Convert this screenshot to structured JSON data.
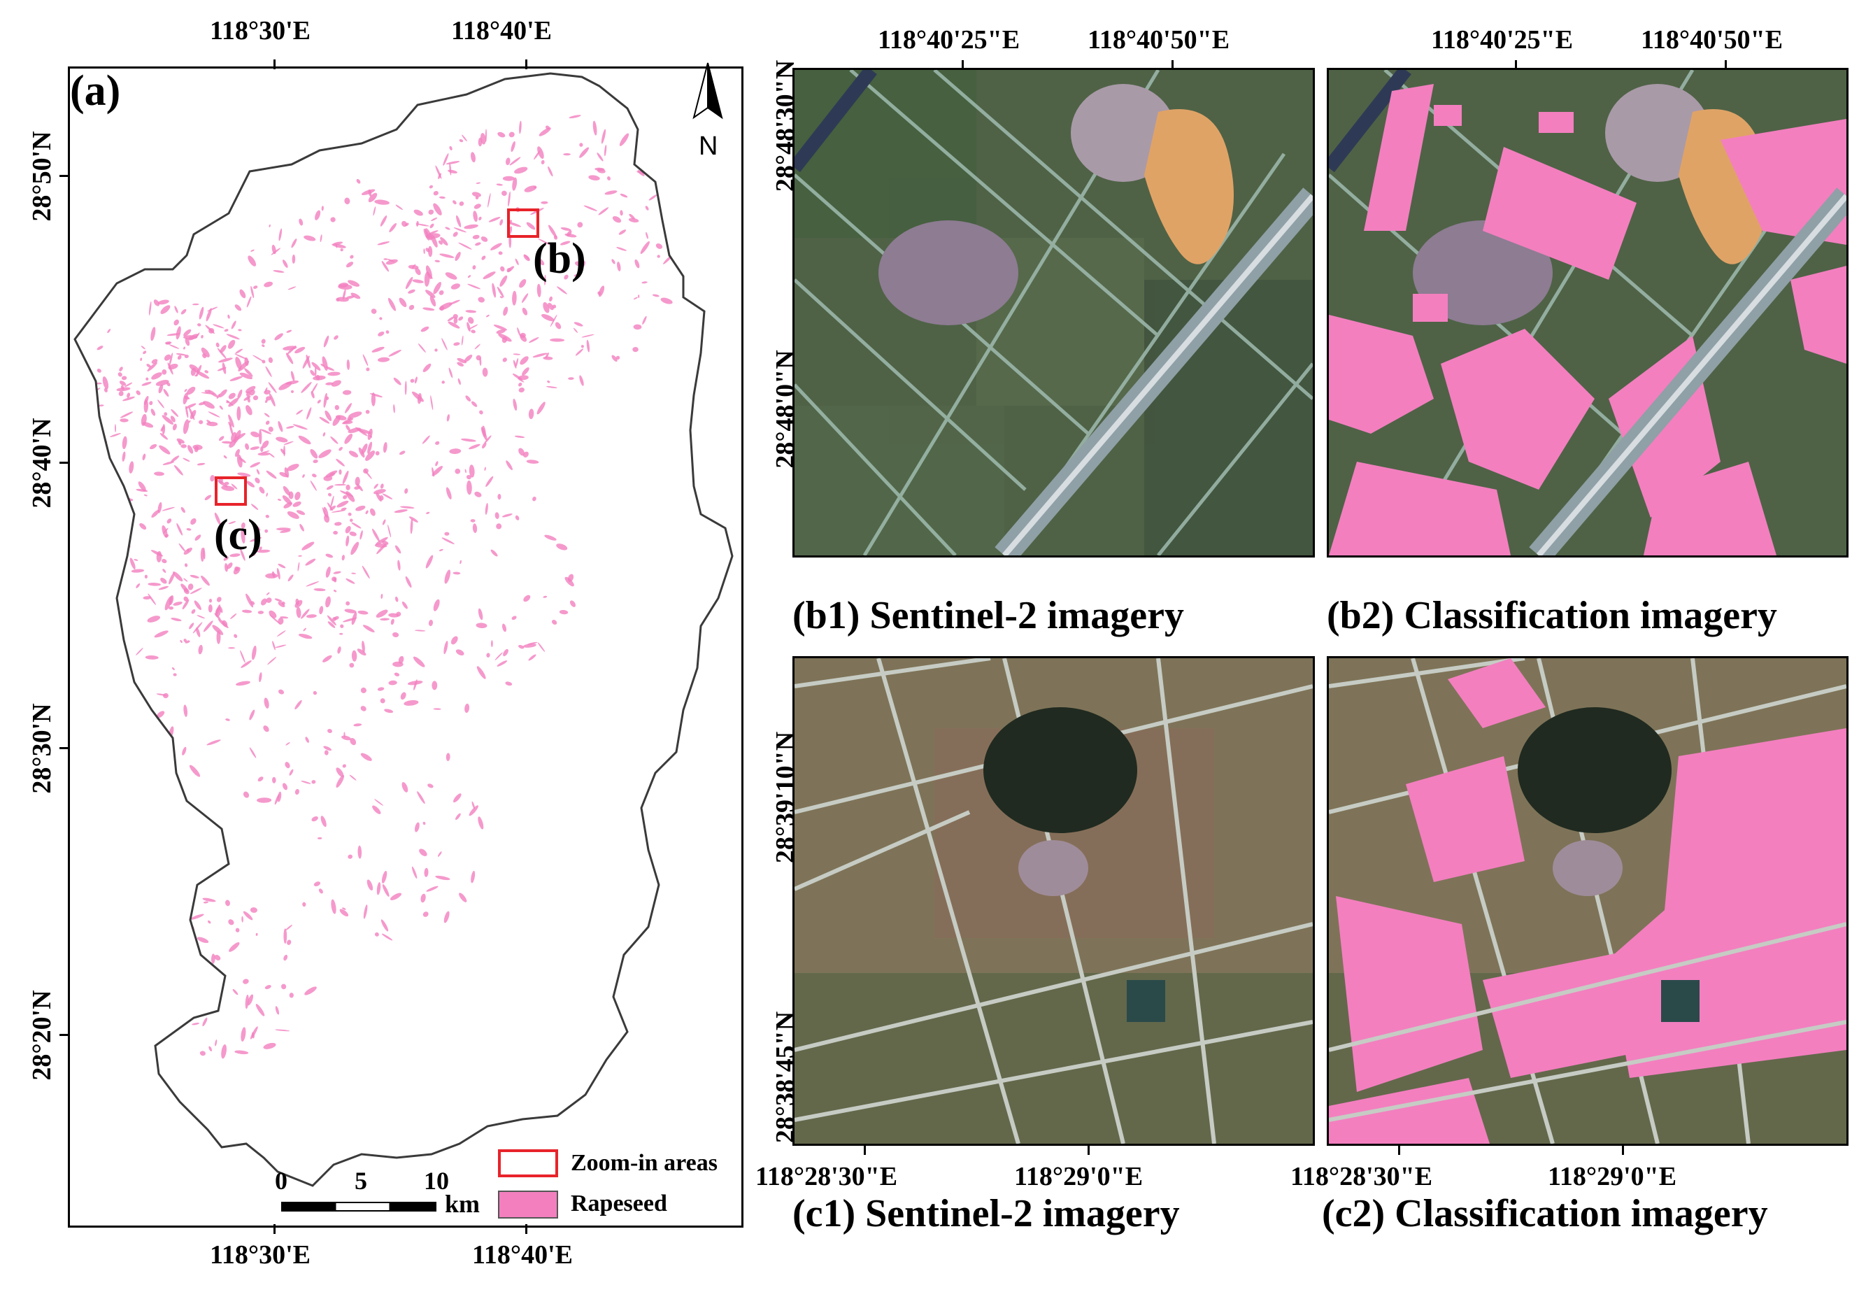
{
  "panel_a": {
    "label": "(a)",
    "top_ticks": [
      "118°30'E",
      "118°40'E"
    ],
    "bottom_ticks": [
      "118°30'E",
      "118°40'E"
    ],
    "left_ticks": [
      "28°50'N",
      "28°40'N",
      "28°30'N",
      "28°20'N"
    ],
    "north_label": "N",
    "zoom_labels": [
      "(b)",
      "(c)"
    ],
    "scale_bar": {
      "ticks": [
        "0",
        "5",
        "10"
      ],
      "unit": "km"
    },
    "legend": [
      {
        "label": "Zoom-in areas",
        "color": "#e8232a",
        "style": "outline"
      },
      {
        "label": "Rapeseed",
        "color": "#f37fbf",
        "style": "fill"
      }
    ]
  },
  "panel_b": {
    "top_ticks_b1": [
      "118°40'25\"E",
      "118°40'50\"E"
    ],
    "top_ticks_b2": [
      "118°40'25\"E",
      "118°40'50\"E"
    ],
    "left_ticks": [
      "28°48'30\"N",
      "28°48'0\"N"
    ],
    "caption_b1": "(b1) Sentinel-2 imagery",
    "caption_b2": "(b2) Classification imagery"
  },
  "panel_c": {
    "bottom_ticks_c1": [
      "118°28'30\"E",
      "118°29'0\"E"
    ],
    "bottom_ticks_c2": [
      "118°28'30\"E",
      "118°29'0\"E"
    ],
    "left_ticks": [
      "28°39'10\"N",
      "28°38'45\"N"
    ],
    "caption_c1": "(c1) Sentinel-2 imagery",
    "caption_c2": "(c2) Classification imagery"
  },
  "colors": {
    "rapeseed": "#f37fbf",
    "zoom_box": "#e8232a",
    "boundary": "#3a3a3a"
  }
}
